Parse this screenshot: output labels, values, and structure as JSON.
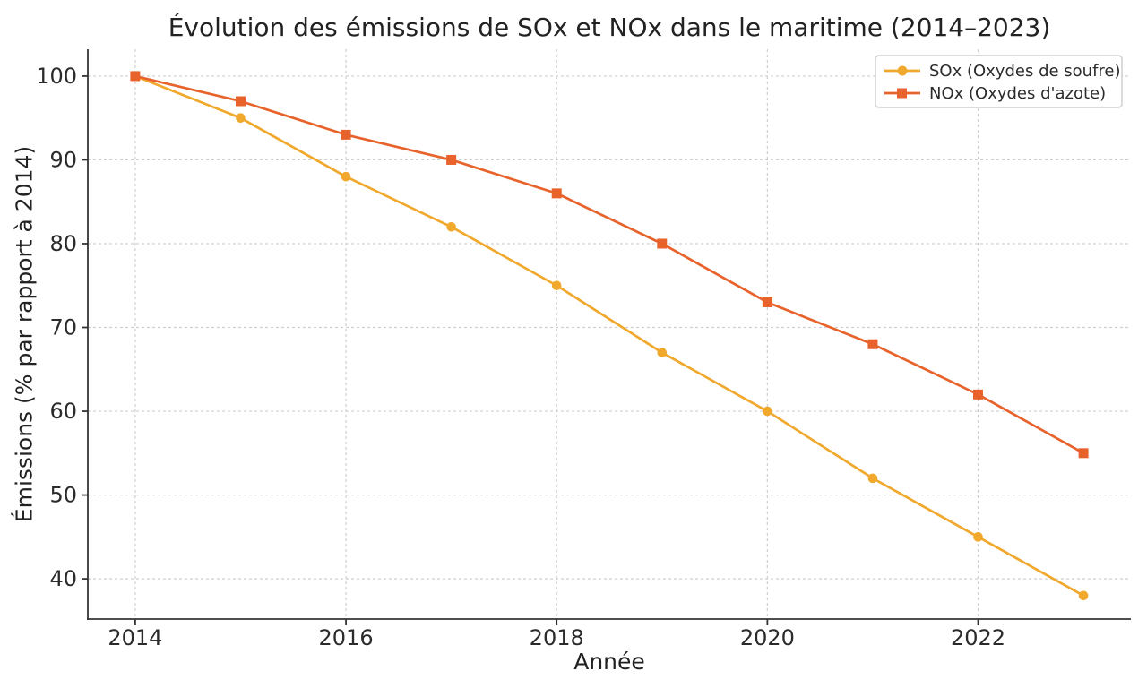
{
  "chart_data": {
    "type": "line",
    "title": "Évolution des émissions de SOx et NOx dans le maritime (2014–2023)",
    "xlabel": "Année",
    "ylabel": "Émissions (% par rapport à 2014)",
    "x": [
      2014,
      2015,
      2016,
      2017,
      2018,
      2019,
      2020,
      2021,
      2022,
      2023
    ],
    "series": [
      {
        "name": "SOx (Oxydes de soufre)",
        "color": "#F0A82D",
        "marker": "circle",
        "values": [
          100,
          95,
          88,
          82,
          75,
          67,
          60,
          52,
          45,
          38
        ]
      },
      {
        "name": "NOx (Oxydes d'azote)",
        "color": "#E8632C",
        "marker": "square",
        "values": [
          100,
          97,
          93,
          90,
          86,
          80,
          73,
          68,
          62,
          55
        ]
      }
    ],
    "xticks": [
      2014,
      2016,
      2018,
      2020,
      2022
    ],
    "yticks": [
      40,
      50,
      60,
      70,
      80,
      90,
      100
    ],
    "xlim": [
      2013.55,
      2023.45
    ],
    "ylim": [
      35.2,
      103.2
    ],
    "grid": true,
    "grid_style": "dashed",
    "legend_position": "top-right",
    "styles": {
      "axis_color": "#343434",
      "grid_color": "#cfcfcf",
      "text_color": "#2b2b2b",
      "legend_border_color": "#c8c8c8",
      "background": "#ffffff"
    }
  }
}
